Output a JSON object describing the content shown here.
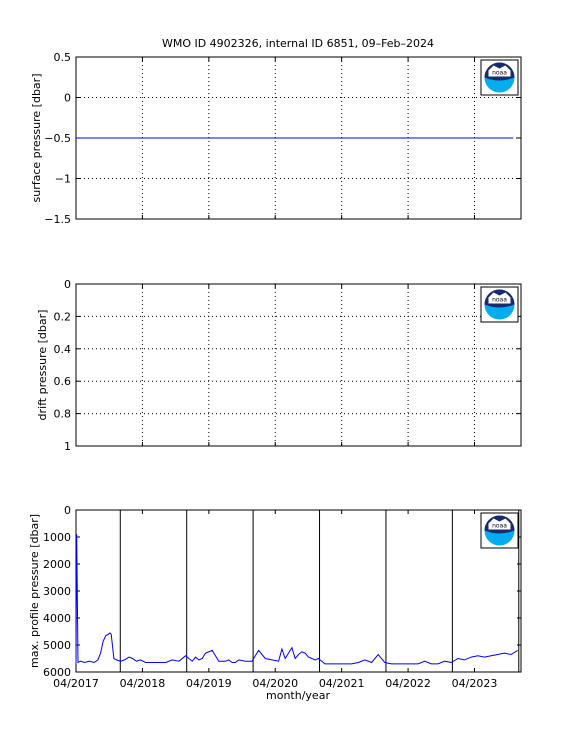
{
  "title": "WMO ID 4902326, internal ID 6851, 09–Feb–2024",
  "xlabel": "month/year",
  "x_ticklabels": [
    "04/2017",
    "04/2018",
    "04/2019",
    "04/2020",
    "04/2021",
    "04/2022",
    "04/2023"
  ],
  "logo": {
    "name": "noaa-logo",
    "text": "noaa",
    "colors": {
      "navy": "#1a2a6c",
      "cyan": "#00aeef"
    }
  },
  "line_color": "#0000ff",
  "chart_data": [
    {
      "type": "line",
      "ylabel": "surface pressure [dbar]",
      "ylim": [
        -1.5,
        0.5
      ],
      "y_ticklabels": [
        "0.5",
        "0",
        "−0.5",
        "−1",
        "−1.5"
      ],
      "grid": true,
      "series": [
        {
          "x": [
            "04/2017",
            "11/2023"
          ],
          "values": [
            -0.5,
            -0.5
          ]
        }
      ]
    },
    {
      "type": "line",
      "ylabel": "drift pressure [dbar]",
      "ylim": [
        0,
        1
      ],
      "y_reversed": true,
      "y_ticklabels": [
        "0",
        "0.2",
        "0.4",
        "0.6",
        "0.8",
        "1"
      ],
      "grid": true,
      "series": []
    },
    {
      "type": "line",
      "ylabel": "max. profile pressure [dbar]",
      "ylim": [
        0,
        6000
      ],
      "y_reversed": true,
      "y_ticklabels": [
        "0",
        "1000",
        "2000",
        "3000",
        "4000",
        "5000",
        "6000"
      ],
      "grid": false,
      "year_lines": [
        "12/2017",
        "12/2018",
        "12/2019",
        "12/2020",
        "12/2021",
        "12/2022",
        "12/2023"
      ],
      "series": [
        {
          "x": [
            2017.25,
            2017.26,
            2017.28,
            2017.32,
            2017.38,
            2017.45,
            2017.52,
            2017.58,
            2017.62,
            2017.66,
            2017.7,
            2017.74,
            2017.76,
            2017.78,
            2017.82,
            2017.86,
            2017.92,
            2017.98,
            2018.05,
            2018.1,
            2018.16,
            2018.22,
            2018.3,
            2018.4,
            2018.5,
            2018.6,
            2018.7,
            2018.8,
            2018.9,
            2019.0,
            2019.05,
            2019.1,
            2019.15,
            2019.2,
            2019.3,
            2019.4,
            2019.5,
            2019.55,
            2019.6,
            2019.65,
            2019.7,
            2019.8,
            2019.9,
            2020.0,
            2020.1,
            2020.2,
            2020.3,
            2020.35,
            2020.4,
            2020.45,
            2020.5,
            2020.55,
            2020.6,
            2020.65,
            2020.7,
            2020.75,
            2020.8,
            2020.85,
            2020.9,
            2020.95,
            2021.0,
            2021.05,
            2021.1,
            2021.2,
            2021.3,
            2021.4,
            2021.5,
            2021.6,
            2021.7,
            2021.8,
            2021.9,
            2022.0,
            2022.05,
            2022.1,
            2022.15,
            2022.2,
            2022.3,
            2022.4,
            2022.5,
            2022.6,
            2022.7,
            2022.8,
            2022.9,
            2023.0,
            2023.1,
            2023.2,
            2023.3,
            2023.4,
            2023.5,
            2023.6,
            2023.7,
            2023.8,
            2023.9
          ],
          "values": [
            5700,
            900,
            5650,
            5600,
            5650,
            5600,
            5650,
            5550,
            5300,
            4850,
            4650,
            4600,
            4550,
            4600,
            5500,
            5550,
            5600,
            5550,
            5450,
            5500,
            5600,
            5550,
            5650,
            5650,
            5650,
            5650,
            5550,
            5600,
            5400,
            5600,
            5450,
            5550,
            5500,
            5300,
            5200,
            5600,
            5600,
            5550,
            5650,
            5650,
            5550,
            5600,
            5600,
            5200,
            5500,
            5550,
            5600,
            5150,
            5500,
            5300,
            5100,
            5500,
            5350,
            5250,
            5300,
            5450,
            5500,
            5550,
            5500,
            5600,
            5700,
            5700,
            5700,
            5700,
            5700,
            5700,
            5650,
            5550,
            5650,
            5350,
            5650,
            5700,
            5700,
            5700,
            5700,
            5700,
            5700,
            5700,
            5600,
            5700,
            5700,
            5600,
            5650,
            5500,
            5550,
            5450,
            5400,
            5450,
            5400,
            5350,
            5300,
            5350,
            5200
          ]
        }
      ]
    }
  ]
}
